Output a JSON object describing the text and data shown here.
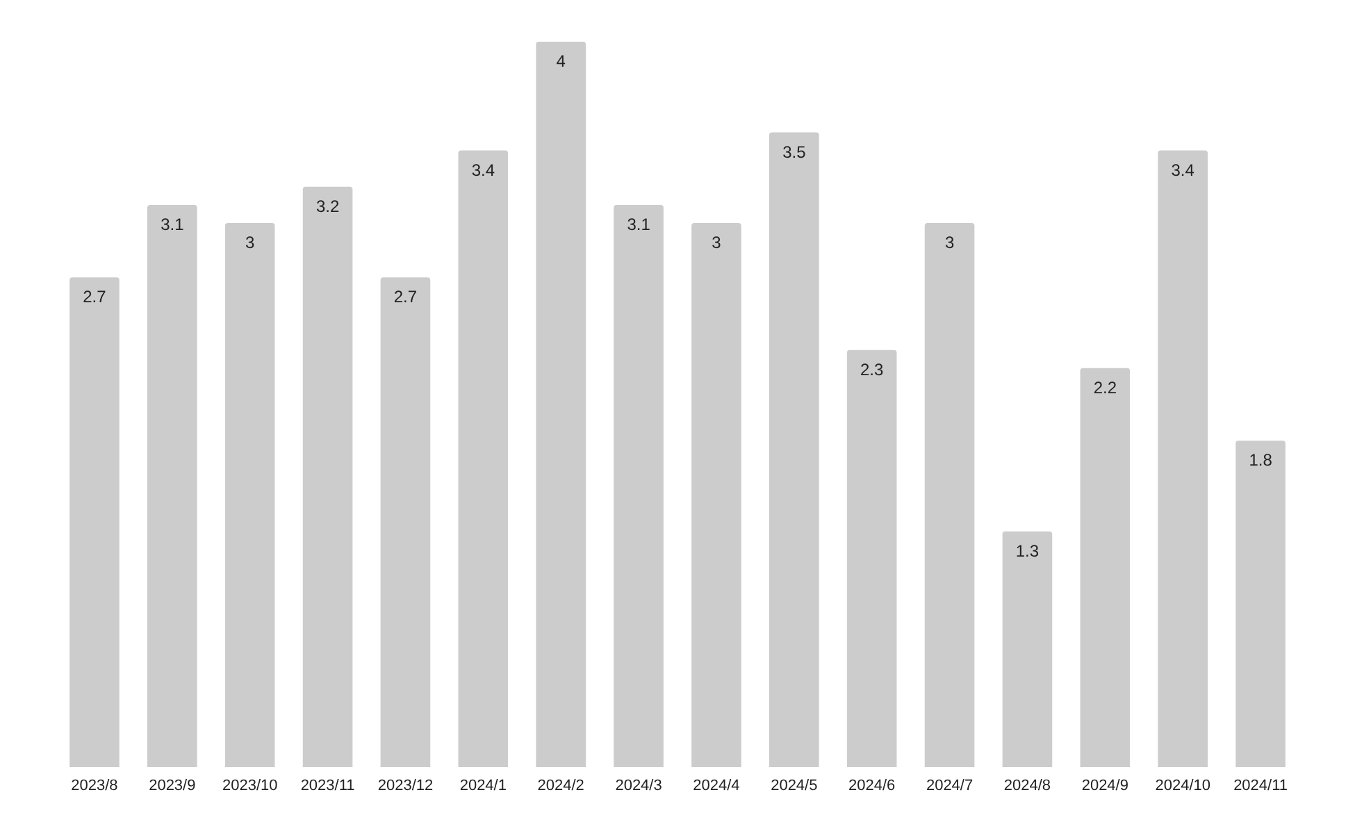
{
  "chart_data": {
    "type": "bar",
    "categories": [
      "2023/8",
      "2023/9",
      "2023/10",
      "2023/11",
      "2023/12",
      "2024/1",
      "2024/2",
      "2024/3",
      "2024/4",
      "2024/5",
      "2024/6",
      "2024/7",
      "2024/8",
      "2024/9",
      "2024/10",
      "2024/11"
    ],
    "values": [
      2.7,
      3.1,
      3,
      3.2,
      2.7,
      3.4,
      4,
      3.1,
      3,
      3.5,
      2.3,
      3,
      1.3,
      2.2,
      3.4,
      1.8
    ],
    "color": "#cccccc",
    "data_labels": true
  }
}
